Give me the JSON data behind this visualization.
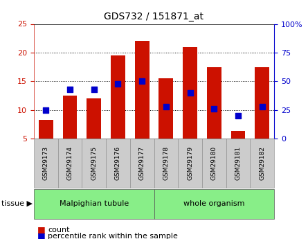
{
  "title": "GDS732 / 151871_at",
  "samples": [
    "GSM29173",
    "GSM29174",
    "GSM29175",
    "GSM29176",
    "GSM29177",
    "GSM29178",
    "GSM29179",
    "GSM29180",
    "GSM29181",
    "GSM29182"
  ],
  "count": [
    8.3,
    12.5,
    12.0,
    19.5,
    22.0,
    15.5,
    21.0,
    17.5,
    6.3,
    17.5
  ],
  "percentile": [
    25,
    43,
    43,
    48,
    50,
    28,
    40,
    26,
    20,
    28
  ],
  "bar_color": "#cc1100",
  "dot_color": "#0000cc",
  "left_ylim": [
    5,
    25
  ],
  "right_ylim": [
    0,
    100
  ],
  "left_yticks": [
    5,
    10,
    15,
    20,
    25
  ],
  "right_yticks": [
    0,
    25,
    50,
    75,
    100
  ],
  "right_yticklabels": [
    "0",
    "25",
    "50",
    "75",
    "100%"
  ],
  "tissue_groups": [
    {
      "label": "Malpighian tubule",
      "start": 0,
      "end": 5
    },
    {
      "label": "whole organism",
      "start": 5,
      "end": 10
    }
  ],
  "tissue_label": "tissue",
  "legend_items": [
    {
      "color": "#cc1100",
      "label": "count"
    },
    {
      "color": "#0000cc",
      "label": "percentile rank within the sample"
    }
  ],
  "plot_bg": "#ffffff",
  "tick_bg": "#cccccc",
  "tissue_bg": "#88ee88",
  "bar_bottom": 5,
  "bar_width": 0.6,
  "dot_size": 30
}
